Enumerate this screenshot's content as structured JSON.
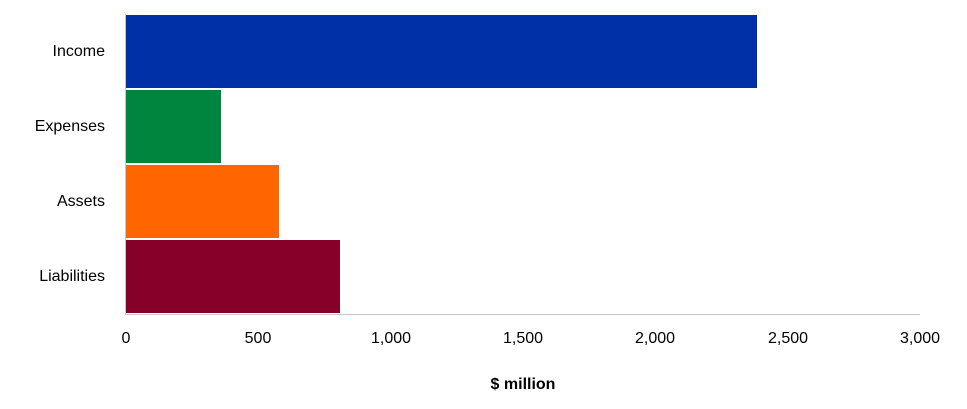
{
  "chart_data": {
    "type": "bar",
    "orientation": "horizontal",
    "title": "",
    "categories": [
      "Income",
      "Expenses",
      "Assets",
      "Liabilities"
    ],
    "values": [
      2385,
      360,
      578,
      810
    ],
    "colors": [
      "#0030A8",
      "#00853F",
      "#FF6600",
      "#870029"
    ],
    "xlabel": "$ million",
    "ylabel": "",
    "xlim": [
      0,
      3000
    ],
    "xticks": [
      "0",
      "500",
      "1,000",
      "1,500",
      "2,000",
      "2,500",
      "3,000"
    ],
    "grid": false,
    "legend": null
  },
  "labels": {
    "categories": [
      "Income",
      "Expenses",
      "Assets",
      "Liabilities"
    ],
    "xticks": [
      "0",
      "500",
      "1,000",
      "1,500",
      "2,000",
      "2,500",
      "3,000"
    ],
    "xtitle": "$ million"
  }
}
